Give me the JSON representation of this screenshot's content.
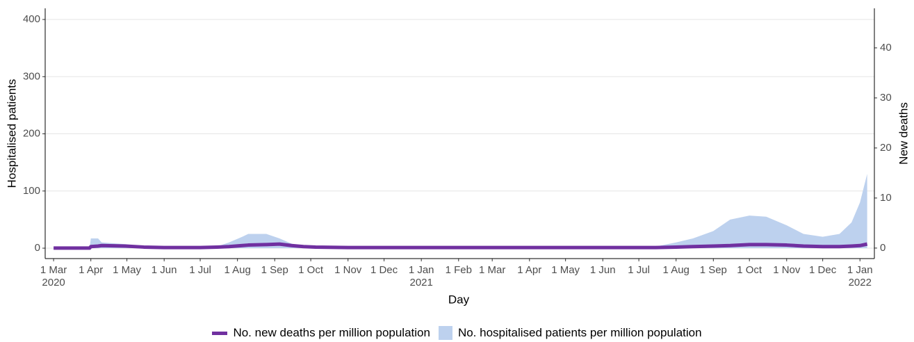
{
  "chart_data": {
    "type": "line",
    "x_label": "Day",
    "y_label": "Hospitalised patients",
    "y2_label": "New deaths",
    "x": [
      "2020-03-01",
      "2020-03-31",
      "2020-04-01",
      "2020-04-07",
      "2020-04-10",
      "2020-04-30",
      "2020-05-15",
      "2020-06-01",
      "2020-07-01",
      "2020-07-15",
      "2020-07-25",
      "2020-08-05",
      "2020-08-10",
      "2020-08-25",
      "2020-09-05",
      "2020-09-15",
      "2020-09-25",
      "2020-10-05",
      "2020-11-01",
      "2021-01-01",
      "2021-03-01",
      "2021-06-01",
      "2021-07-01",
      "2021-07-15",
      "2021-08-01",
      "2021-08-15",
      "2021-09-01",
      "2021-09-15",
      "2021-10-01",
      "2021-10-15",
      "2021-11-01",
      "2021-11-15",
      "2021-12-01",
      "2021-12-15",
      "2021-12-25",
      "2022-01-01",
      "2022-01-07"
    ],
    "series": [
      {
        "name": "No. new deaths per million population",
        "type": "line",
        "axis": "y2",
        "color": "#7030a0",
        "values": [
          0,
          0,
          0.3,
          0.4,
          0.5,
          0.4,
          0.2,
          0.1,
          0.1,
          0.2,
          0.3,
          0.5,
          0.6,
          0.7,
          0.8,
          0.5,
          0.3,
          0.2,
          0.1,
          0.1,
          0.1,
          0.1,
          0.1,
          0.1,
          0.2,
          0.3,
          0.4,
          0.5,
          0.7,
          0.7,
          0.6,
          0.4,
          0.3,
          0.3,
          0.4,
          0.5,
          0.8
        ]
      },
      {
        "name": "No. hospitalised patients per million population",
        "type": "area",
        "color": "#bdd1ee",
        "values": [
          0,
          0,
          17,
          17,
          10,
          7,
          3,
          1,
          0.5,
          3,
          10,
          20,
          25,
          25,
          17,
          8,
          3,
          1,
          0.3,
          0.3,
          0.3,
          0.3,
          1,
          3,
          10,
          17,
          30,
          50,
          57,
          55,
          40,
          25,
          20,
          25,
          45,
          80,
          130
        ]
      }
    ],
    "xlim": [
      "2020-02-23",
      "2022-01-13"
    ],
    "xticks": [
      {
        "value": "2020-03-01",
        "label": "1 Mar\n2020"
      },
      {
        "value": "2020-04-01",
        "label": "1 Apr"
      },
      {
        "value": "2020-05-01",
        "label": "1 May"
      },
      {
        "value": "2020-06-01",
        "label": "1 Jun"
      },
      {
        "value": "2020-07-01",
        "label": "1 Jul"
      },
      {
        "value": "2020-08-01",
        "label": "1 Aug"
      },
      {
        "value": "2020-09-01",
        "label": "1 Sep"
      },
      {
        "value": "2020-10-01",
        "label": "1 Oct"
      },
      {
        "value": "2020-11-01",
        "label": "1 Nov"
      },
      {
        "value": "2020-12-01",
        "label": "1 Dec"
      },
      {
        "value": "2021-01-01",
        "label": "1 Jan\n2021"
      },
      {
        "value": "2021-02-01",
        "label": "1 Feb"
      },
      {
        "value": "2021-03-01",
        "label": "1 Mar"
      },
      {
        "value": "2021-04-01",
        "label": "1 Apr"
      },
      {
        "value": "2021-05-01",
        "label": "1 May"
      },
      {
        "value": "2021-06-01",
        "label": "1 Jun"
      },
      {
        "value": "2021-07-01",
        "label": "1 Jul"
      },
      {
        "value": "2021-08-01",
        "label": "1 Aug"
      },
      {
        "value": "2021-09-01",
        "label": "1 Sep"
      },
      {
        "value": "2021-10-01",
        "label": "1 Oct"
      },
      {
        "value": "2021-11-01",
        "label": "1 Nov"
      },
      {
        "value": "2021-12-01",
        "label": "1 Dec"
      },
      {
        "value": "2022-01-01",
        "label": "1 Jan\n2022"
      }
    ],
    "ylim": [
      -18.2,
      419.5
    ],
    "yticks": [
      0,
      100,
      200,
      300,
      400
    ],
    "y2lim": [
      -2.1,
      47.9
    ],
    "y2ticks": [
      0,
      10,
      20,
      30,
      40
    ],
    "grid": true,
    "legend": "bottom"
  }
}
